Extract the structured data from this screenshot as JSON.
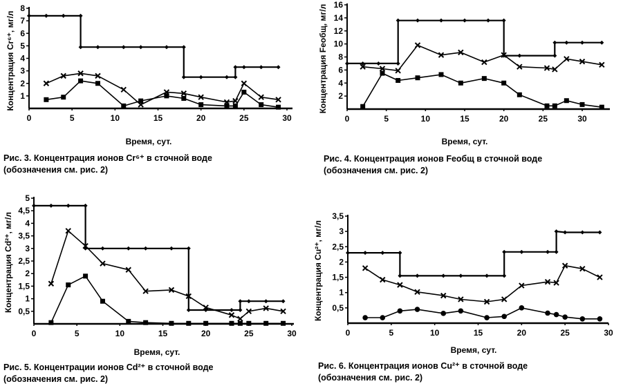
{
  "chart_data": [
    {
      "type": "line",
      "title": "Рис. 3. Концентрация ионов Cr⁶⁺ в сточной воде",
      "subtitle": "(обозначения см. рис. 2)",
      "xlabel": "Время, сут.",
      "ylabel": "Концентрация Cr⁶⁺, мг/л",
      "xlim": [
        0,
        30
      ],
      "ylim": [
        0,
        8
      ],
      "xticks": [
        "0",
        "5",
        "10",
        "15",
        "20",
        "25",
        "30"
      ],
      "yticks": [
        "1",
        "2",
        "3",
        "4",
        "5",
        "6",
        "7",
        "8"
      ],
      "grid": false,
      "series": [
        {
          "name": "step",
          "marker": "diamond",
          "x": [
            0,
            2,
            4,
            6,
            6,
            8,
            11,
            13,
            16,
            18,
            18,
            20,
            23,
            24,
            24,
            25,
            27,
            29
          ],
          "y": [
            7.4,
            7.4,
            7.4,
            7.4,
            4.9,
            4.9,
            4.9,
            4.9,
            4.9,
            4.9,
            2.5,
            2.5,
            2.5,
            2.5,
            3.3,
            3.3,
            3.3,
            3.3
          ]
        },
        {
          "name": "cross",
          "marker": "cross",
          "x": [
            2,
            4,
            6,
            8,
            11,
            13,
            16,
            18,
            20,
            23,
            24,
            25,
            27,
            29
          ],
          "y": [
            2.0,
            2.6,
            2.8,
            2.6,
            1.5,
            0.3,
            1.3,
            1.2,
            0.9,
            0.5,
            0.6,
            2.0,
            0.9,
            0.7
          ]
        },
        {
          "name": "square",
          "marker": "square",
          "x": [
            2,
            4,
            6,
            8,
            11,
            13,
            16,
            18,
            20,
            23,
            24,
            25,
            27,
            29
          ],
          "y": [
            0.7,
            0.9,
            2.2,
            2.0,
            0.2,
            0.6,
            1.0,
            0.8,
            0.3,
            0.2,
            0.2,
            1.3,
            0.3,
            0.1
          ]
        }
      ]
    },
    {
      "type": "line",
      "title": "Рис. 4. Концентрация ионов Feобщ в сточной воде",
      "subtitle": "(обозначения см. рис. 2)",
      "xlabel": "Время, сут.",
      "ylabel": "Концентрация Feобщ, мг/л",
      "xlim": [
        0,
        30
      ],
      "ylim": [
        0,
        16
      ],
      "xticks": [
        "0",
        "5",
        "10",
        "15",
        "20",
        "25",
        "30"
      ],
      "yticks": [
        "2",
        "4",
        "6",
        "8",
        "10",
        "12",
        "14",
        "16"
      ],
      "grid": false,
      "series": [
        {
          "name": "step",
          "marker": "diamond",
          "x": [
            0,
            2,
            4,
            6.5,
            6.5,
            9,
            12,
            15,
            18,
            20,
            20,
            22,
            26.5,
            26.5,
            28,
            30,
            32.5
          ],
          "y": [
            7,
            7,
            7,
            7,
            13.6,
            13.6,
            13.6,
            13.6,
            13.6,
            13.6,
            8.2,
            8.2,
            8.2,
            10.2,
            10.2,
            10.2,
            10.2
          ]
        },
        {
          "name": "cross",
          "marker": "cross",
          "x": [
            2,
            4.5,
            6.5,
            9,
            12,
            14.5,
            17.5,
            20,
            22,
            25.5,
            26.5,
            28,
            30,
            32.5
          ],
          "y": [
            6.5,
            6.2,
            5.9,
            9.8,
            8.3,
            8.7,
            7.2,
            8.3,
            6.5,
            6.3,
            6.1,
            7.7,
            7.3,
            6.8
          ]
        },
        {
          "name": "square",
          "marker": "square",
          "x": [
            2,
            4.5,
            6.5,
            9,
            12,
            14.5,
            17.5,
            20,
            22,
            25.5,
            26.5,
            28,
            30,
            32.5
          ],
          "y": [
            0.4,
            5.5,
            4.4,
            4.8,
            5.3,
            4.0,
            4.7,
            4.0,
            2.2,
            0.5,
            0.5,
            1.3,
            0.7,
            0.3
          ]
        }
      ]
    },
    {
      "type": "line",
      "title": "Рис. 5. Концентрации ионов Cd²⁺ в сточной воде",
      "subtitle": "(обозначения см. рис. 2)",
      "xlabel": "Время, сут.",
      "ylabel": "Концентрация Cd²⁺, мг/л",
      "xlim": [
        0,
        30
      ],
      "ylim": [
        0,
        5
      ],
      "xticks": [
        "0",
        "5",
        "10",
        "15",
        "20",
        "25",
        "30"
      ],
      "yticks": [
        "0,5",
        "1",
        "1,5",
        "2",
        "2,5",
        "3",
        "3,5",
        "4",
        "4,5",
        "5"
      ],
      "grid": false,
      "series": [
        {
          "name": "step",
          "marker": "diamond",
          "x": [
            0,
            2,
            4,
            6,
            6,
            8,
            11,
            13,
            16,
            18,
            18,
            20,
            23,
            24,
            24,
            25,
            27,
            29
          ],
          "y": [
            4.7,
            4.7,
            4.7,
            4.7,
            3,
            3,
            3,
            3,
            3,
            3,
            0.55,
            0.55,
            0.55,
            0.55,
            0.9,
            0.9,
            0.9,
            0.9
          ]
        },
        {
          "name": "cross",
          "marker": "cross",
          "x": [
            2,
            4,
            6,
            8,
            11,
            13,
            16,
            18,
            20,
            23,
            24,
            25,
            27,
            29
          ],
          "y": [
            1.6,
            3.7,
            3.1,
            2.4,
            2.15,
            1.3,
            1.35,
            1.1,
            0.65,
            0.35,
            0.2,
            0.5,
            0.62,
            0.5
          ]
        },
        {
          "name": "square",
          "marker": "square",
          "x": [
            2,
            4,
            6,
            8,
            11,
            13,
            16,
            18,
            20,
            23,
            24,
            25,
            27,
            29
          ],
          "y": [
            0.05,
            1.55,
            1.9,
            0.9,
            0.1,
            0.05,
            0.02,
            0.02,
            0.02,
            0.02,
            0.02,
            0.02,
            0.02,
            0.02
          ]
        }
      ]
    },
    {
      "type": "line",
      "title": "Рис. 6. Концентрация ионов Cu²⁺ в сточной воде",
      "subtitle": "(обозначения см. рис. 2)",
      "xlabel": "Время, сут.",
      "ylabel": "Концентрация Cu²⁺, мг/л",
      "xlim": [
        0,
        30
      ],
      "ylim": [
        0,
        3.5
      ],
      "xticks": [
        "0",
        "5",
        "10",
        "15",
        "20",
        "25",
        "30"
      ],
      "yticks": [
        "0,5",
        "1",
        "1,5",
        "2",
        "2,5",
        "3",
        "3,5"
      ],
      "grid": false,
      "series": [
        {
          "name": "step",
          "marker": "diamond",
          "x": [
            0,
            2,
            4,
            6,
            6,
            8,
            11,
            13,
            16,
            18,
            18,
            20,
            23,
            24,
            24,
            25,
            27,
            29
          ],
          "y": [
            2.3,
            2.3,
            2.3,
            2.3,
            1.55,
            1.55,
            1.55,
            1.55,
            1.55,
            1.55,
            2.33,
            2.33,
            2.33,
            2.33,
            3,
            2.97,
            2.97,
            2.97
          ]
        },
        {
          "name": "cross",
          "marker": "cross",
          "x": [
            2,
            4,
            6,
            8,
            11,
            13,
            16,
            18,
            20,
            23,
            24,
            25,
            27,
            29
          ],
          "y": [
            1.8,
            1.42,
            1.25,
            1.02,
            0.9,
            0.78,
            0.7,
            0.78,
            1.23,
            1.35,
            1.32,
            1.88,
            1.78,
            1.5
          ]
        },
        {
          "name": "circle",
          "marker": "circle",
          "x": [
            2,
            4,
            6,
            8,
            11,
            13,
            16,
            18,
            20,
            23,
            24,
            25,
            27,
            29
          ],
          "y": [
            0.18,
            0.18,
            0.4,
            0.45,
            0.32,
            0.4,
            0.18,
            0.22,
            0.5,
            0.33,
            0.28,
            0.2,
            0.14,
            0.14
          ]
        }
      ]
    }
  ]
}
